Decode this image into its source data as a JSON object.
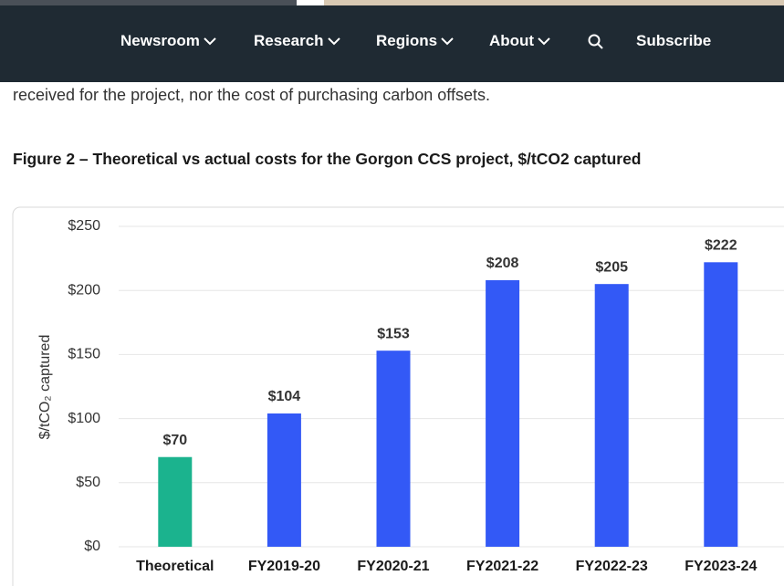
{
  "nav": {
    "items": [
      "Newsroom",
      "Research",
      "Regions",
      "About"
    ],
    "subscribe": "Subscribe"
  },
  "article": {
    "paragraph": "received for the project, nor the cost of purchasing carbon offsets.",
    "figure_caption": "Figure 2 – Theoretical vs actual costs for the Gorgon CCS project, $/tCO2 captured"
  },
  "chart_data": {
    "type": "bar",
    "y_label": "$/tCO₂ captured",
    "categories": [
      "Theoretical",
      "FY2019-20",
      "FY2020-21",
      "FY2021-22",
      "FY2022-23",
      "FY2023-24"
    ],
    "values": [
      70,
      104,
      153,
      208,
      205,
      222
    ],
    "value_labels": [
      "$70",
      "$104",
      "$153",
      "$208",
      "$205",
      "$222"
    ],
    "colors": [
      "#1bb38e",
      "#3359f6",
      "#3359f6",
      "#3359f6",
      "#3359f6",
      "#3359f6"
    ],
    "ylim": [
      0,
      250
    ],
    "yticks": [
      {
        "value": 0,
        "label": "$0"
      },
      {
        "value": 50,
        "label": "$50"
      },
      {
        "value": 100,
        "label": "$100"
      },
      {
        "value": 150,
        "label": "$150"
      },
      {
        "value": 200,
        "label": "$200"
      },
      {
        "value": 250,
        "label": "$250"
      }
    ],
    "grid": true
  }
}
